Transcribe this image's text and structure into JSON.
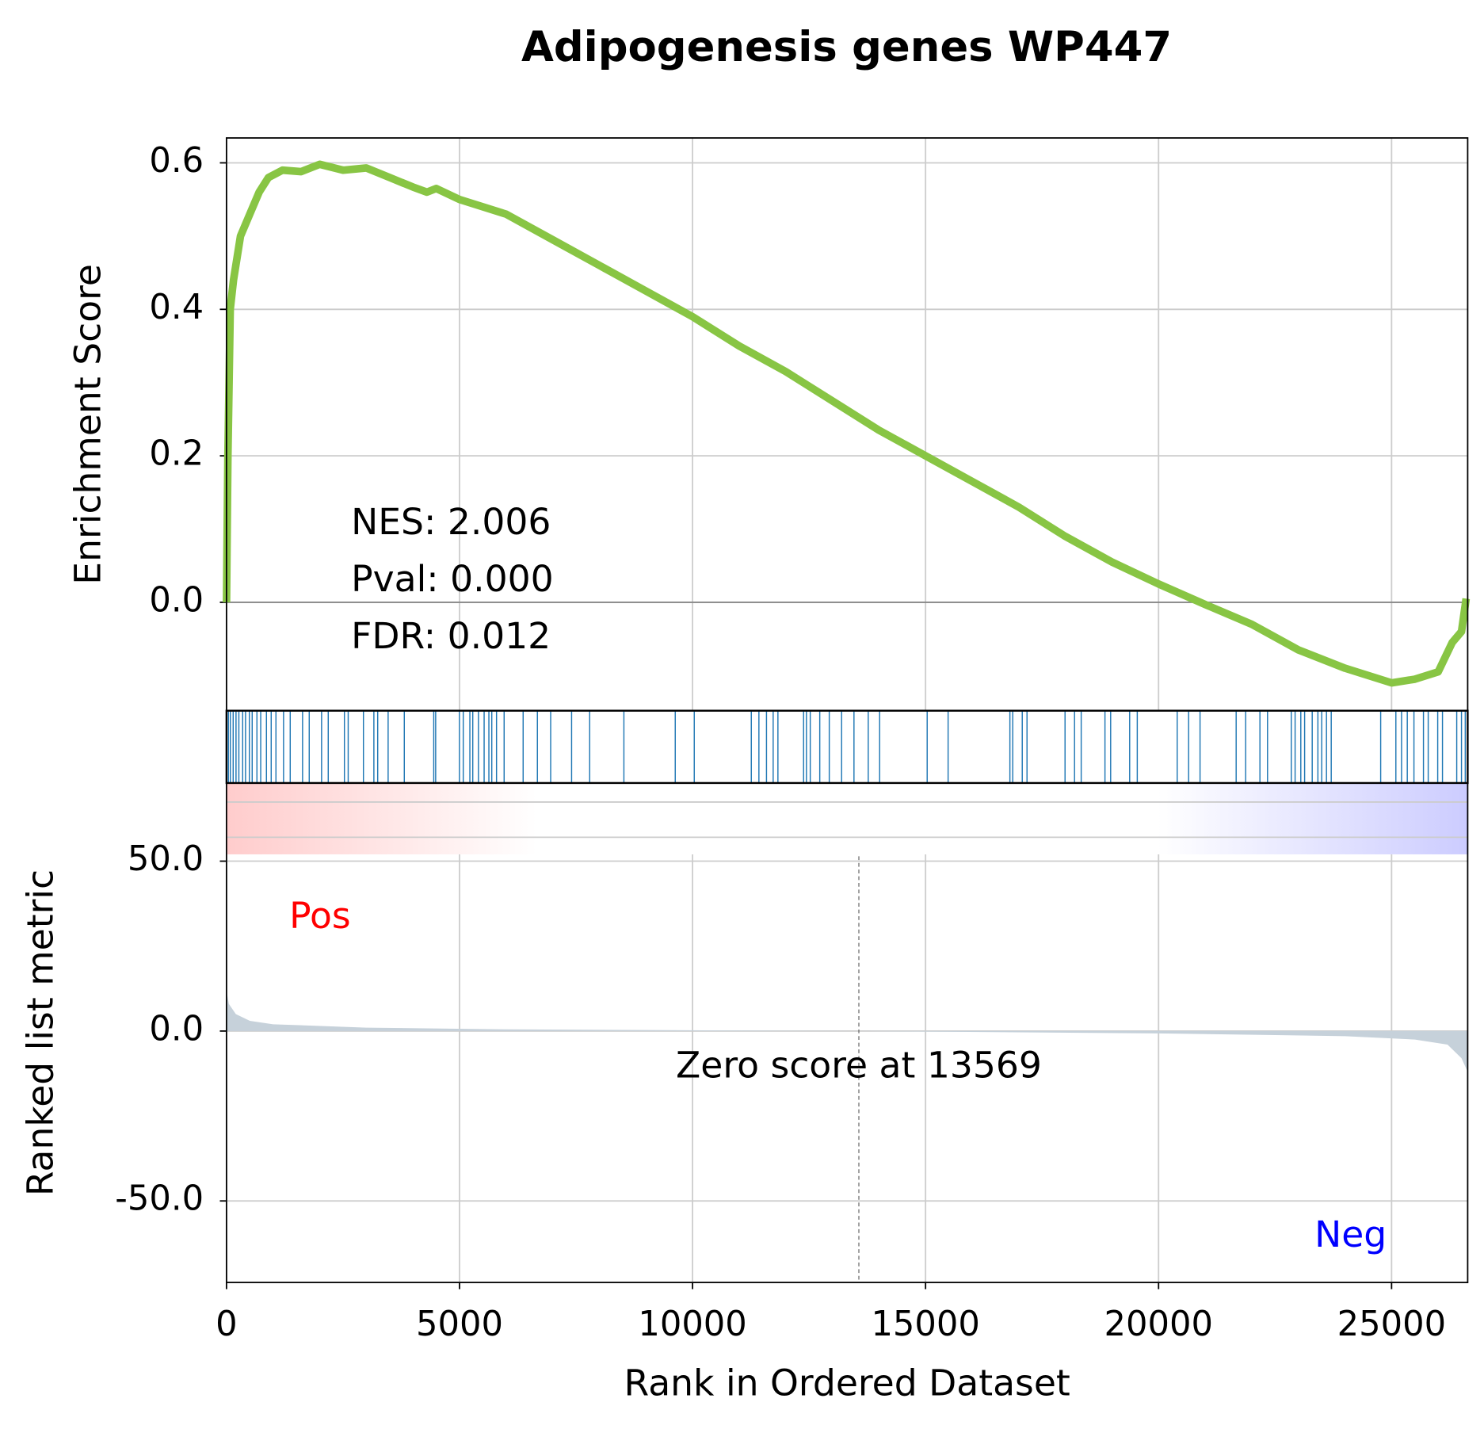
{
  "chart_data": [
    {
      "type": "line",
      "title": "Adipogenesis genes WP447",
      "y_label": "Enrichment Score",
      "x": [
        0,
        30,
        80,
        150,
        300,
        500,
        700,
        900,
        1200,
        1600,
        2000,
        2500,
        3000,
        3500,
        4000,
        4300,
        4500,
        5000,
        6000,
        7000,
        8000,
        9000,
        10000,
        11000,
        12000,
        13000,
        14000,
        15000,
        16000,
        17000,
        18000,
        19000,
        20000,
        21000,
        22000,
        23000,
        24000,
        25000,
        25500,
        26000,
        26300,
        26500,
        26600
      ],
      "values": [
        0,
        0.2,
        0.4,
        0.44,
        0.5,
        0.53,
        0.56,
        0.58,
        0.59,
        0.588,
        0.598,
        0.59,
        0.593,
        0.58,
        0.567,
        0.56,
        0.565,
        0.55,
        0.53,
        0.495,
        0.46,
        0.425,
        0.39,
        0.35,
        0.315,
        0.275,
        0.235,
        0.2,
        0.165,
        0.13,
        0.09,
        0.055,
        0.025,
        -0.003,
        -0.03,
        -0.065,
        -0.09,
        -0.11,
        -0.105,
        -0.095,
        -0.055,
        -0.04,
        0.005
      ],
      "color": "#88c544",
      "xlim": [
        0,
        26633
      ],
      "xticks": [
        0,
        5000,
        10000,
        15000,
        20000,
        25000
      ],
      "ylim": [
        -0.148,
        0.634
      ],
      "yticks": [
        0.6,
        0.4,
        0.2,
        {
          "value": 0,
          "label": "0.0"
        }
      ],
      "grid": true,
      "annotations": [
        "NES: 2.006",
        "Pval: 0.000",
        "FDR: 0.012"
      ]
    },
    {
      "type": "rug",
      "color": "#1f77b4",
      "xlim": [
        0,
        26633
      ],
      "x": [
        41,
        82,
        143,
        204,
        265,
        347,
        408,
        490,
        551,
        653,
        734,
        857,
        959,
        1061,
        1224,
        1367,
        1632,
        1775,
        2040,
        2183,
        2530,
        2611,
        2938,
        3162,
        3244,
        3468,
        3815,
        4447,
        4488,
        4998,
        5080,
        5222,
        5284,
        5406,
        5528,
        5630,
        5692,
        5794,
        5957,
        6365,
        6671,
        6956,
        7405,
        7793,
        8527,
        9629,
        10037,
        11261,
        11424,
        11587,
        11730,
        11832,
        12383,
        12444,
        12526,
        12730,
        12934,
        13199,
        13464,
        13770,
        14015,
        15035,
        15484,
        16810,
        16871,
        17075,
        17177,
        17993,
        18197,
        18340,
        18850,
        18972,
        19380,
        19543,
        20400,
        20645,
        20890,
        21665,
        21869,
        22175,
        22338,
        22848,
        22930,
        23052,
        23134,
        23297,
        23419,
        23501,
        23603,
        23705,
        24766,
        25092,
        25214,
        25337,
        25480,
        25684,
        25786,
        25990,
        26092,
        26398,
        26500,
        26581
      ]
    },
    {
      "type": "area",
      "y_label": "Ranked list metric",
      "x_label": "Rank in Ordered Dataset",
      "x": [
        0,
        50,
        200,
        500,
        1000,
        3000,
        6000,
        13569,
        20000,
        24000,
        25500,
        26200,
        26500,
        26633
      ],
      "values": [
        12,
        8,
        5,
        3,
        2,
        1,
        0.5,
        0,
        -0.7,
        -1.5,
        -2.5,
        -4,
        -8,
        -12
      ],
      "color": "#c6d1da",
      "xlim": [
        0,
        26633
      ],
      "xticks": [
        0,
        5000,
        10000,
        15000,
        20000,
        25000
      ],
      "ylim": [
        -74,
        52
      ],
      "yticks": [
        {
          "value": 50,
          "label": "50.0"
        },
        {
          "value": 0,
          "label": "0.0"
        },
        {
          "value": -50,
          "label": "-50.0"
        }
      ],
      "grid": true,
      "pos_label": "Pos",
      "neg_label": "Neg",
      "zero_rank": 13569,
      "zero_label": "Zero score at 13569"
    }
  ]
}
